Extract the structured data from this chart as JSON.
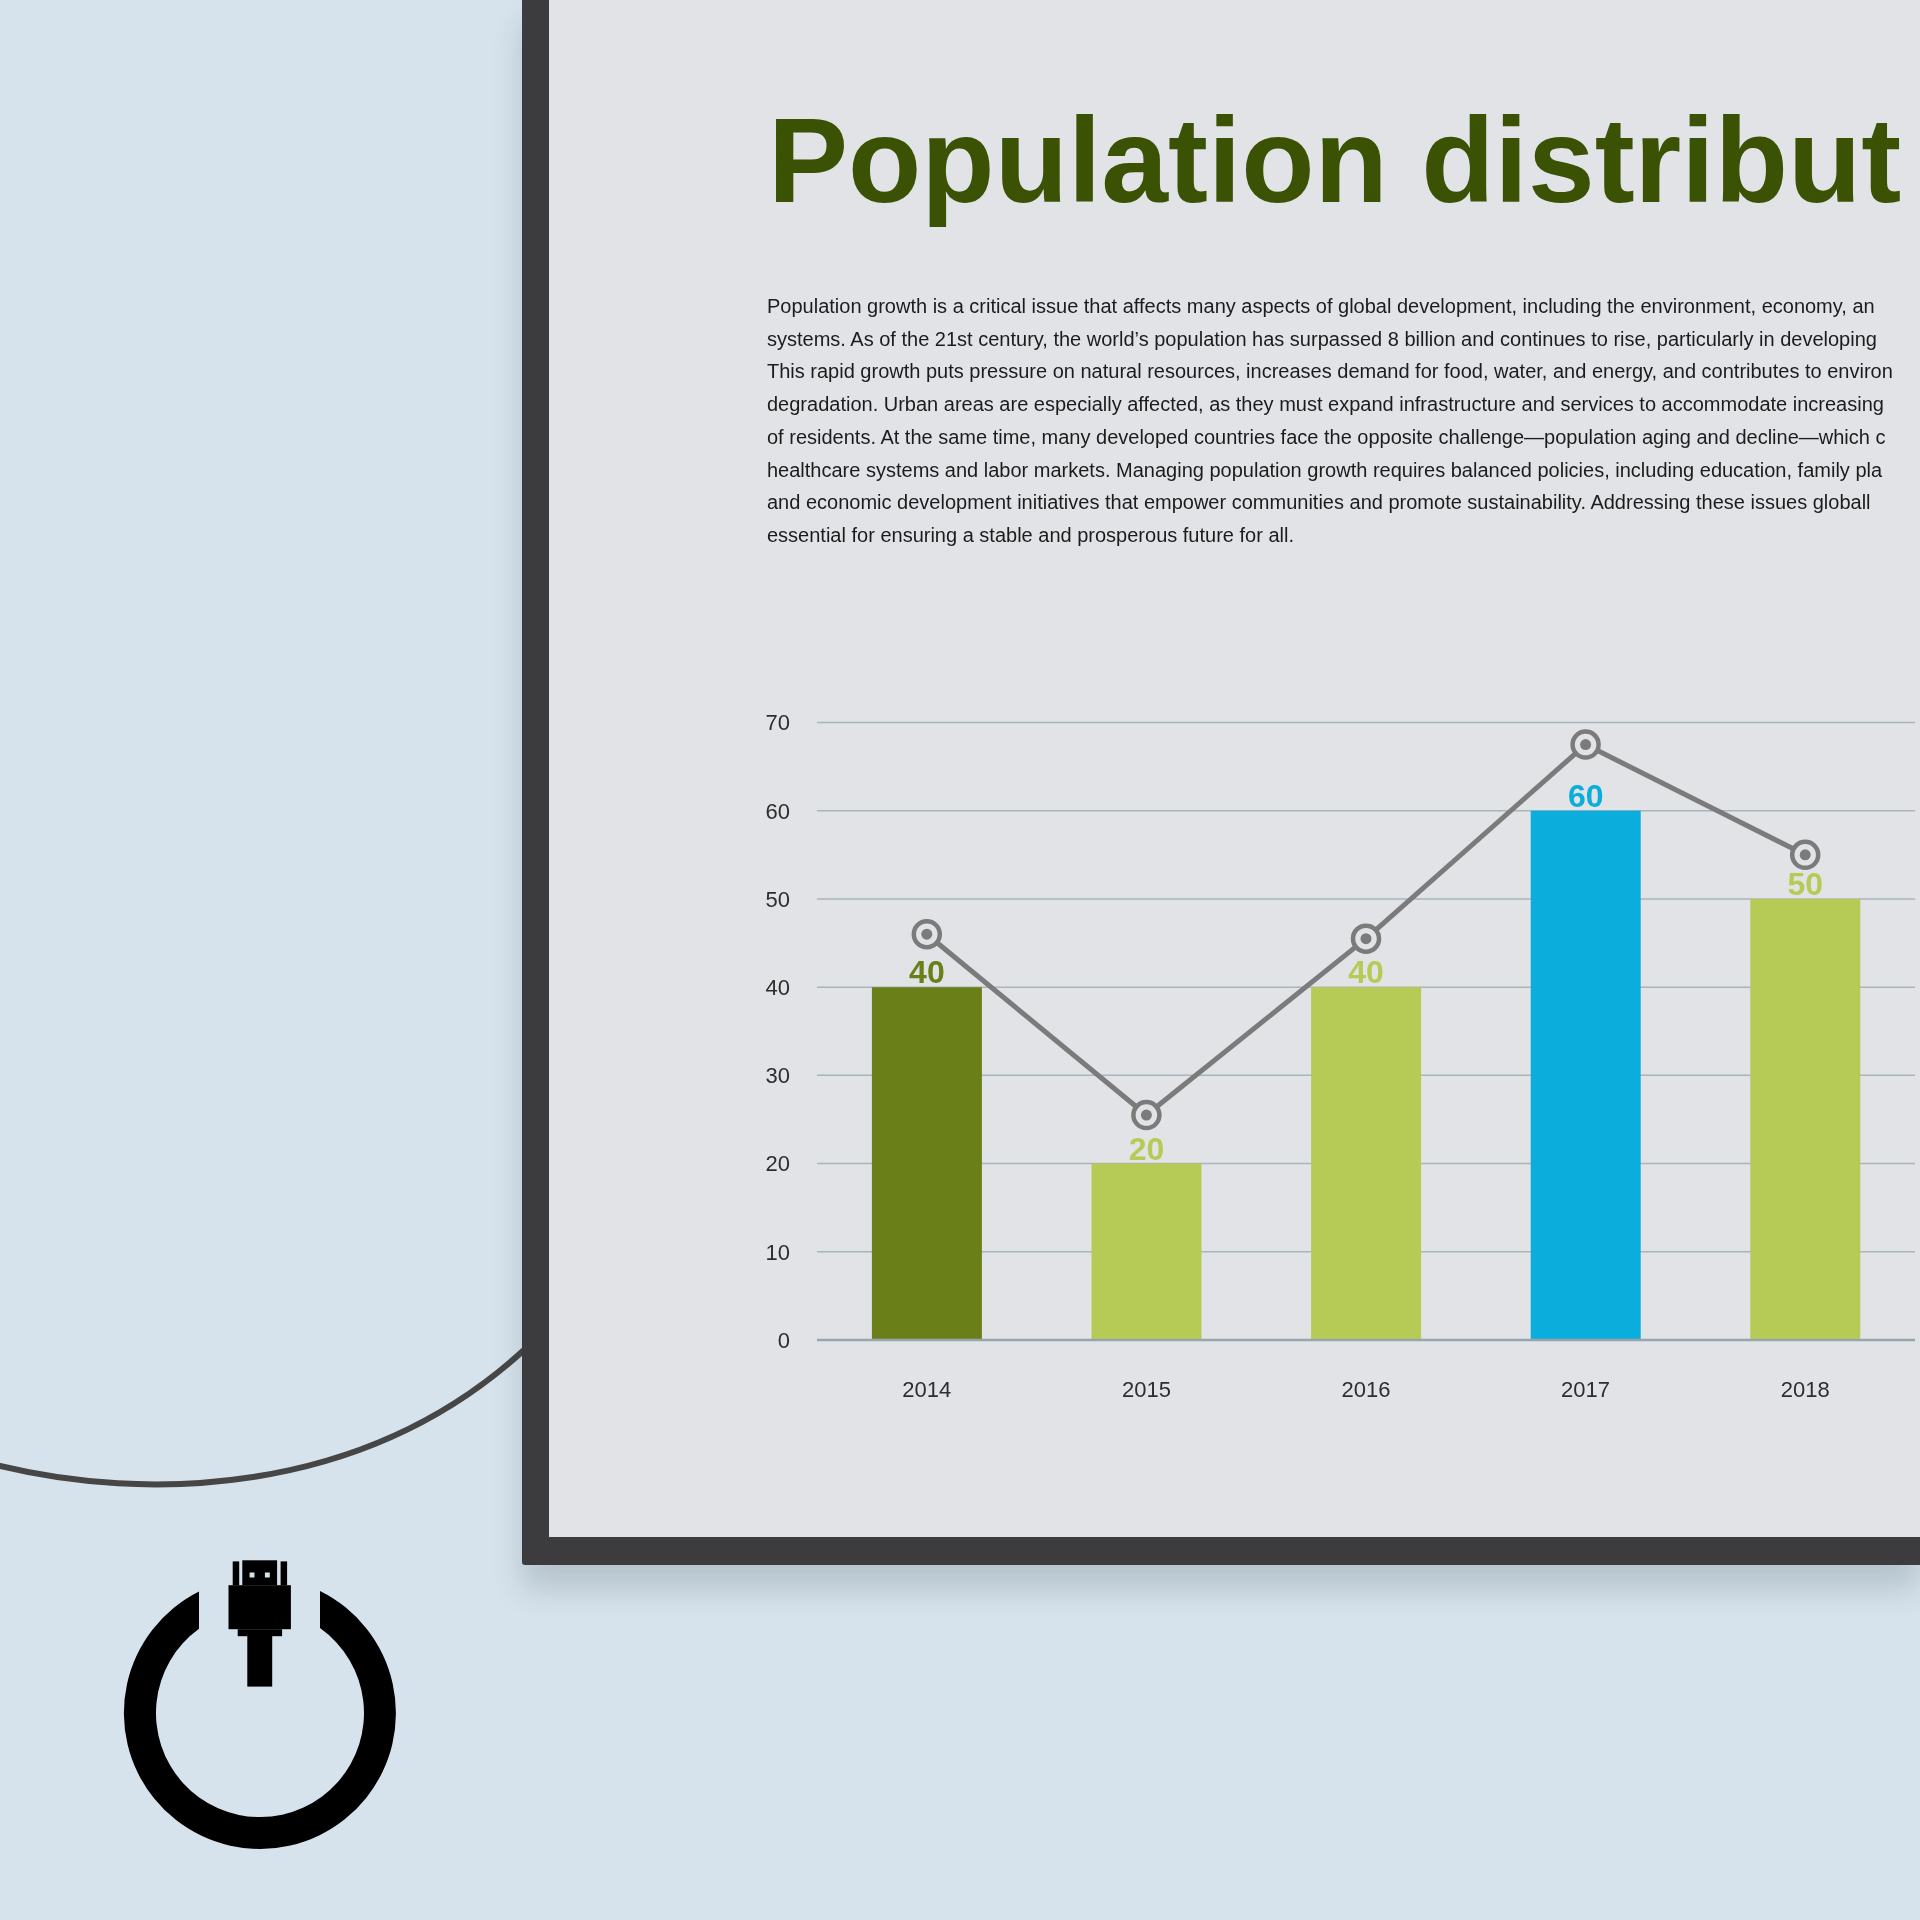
{
  "chart_data": {
    "type": "bar",
    "title": "Population distribut",
    "subtitle": "Population growth is a critical issue that affects many aspects of global development, including the environment, economy, an\nsystems. As of the 21st century, the world’s population has surpassed 8 billion and continues to rise, particularly in developing\nThis rapid growth puts pressure on natural resources, increases demand for food, water, and energy, and contributes to environ\ndegradation. Urban areas are especially affected, as they must expand infrastructure and services to accommodate increasing\nof residents. At the same time, many developed countries face the opposite challenge—population aging and decline—which c\nhealthcare systems and labor markets. Managing population growth requires balanced policies, including education, family pla\nand economic development initiatives that empower communities and promote sustainability. Addressing these issues globall\nessential for ensuring a stable and prosperous future for all.",
    "categories": [
      "2014",
      "2015",
      "2016",
      "2017",
      "2018"
    ],
    "series": [
      {
        "colors": [
          "#6a7f18",
          "#b6cb55",
          "#b6cb55",
          "#0aaddc",
          "#b6cb55"
        ],
        "values": [
          40,
          20,
          40,
          60,
          50
        ],
        "value_labels": [
          "40",
          "20",
          "40",
          "60",
          "50"
        ]
      },
      {
        "type": "line",
        "color": "#7b7b7b",
        "values": [
          46,
          25.5,
          45.5,
          67.5,
          55
        ]
      }
    ],
    "ylim": [
      0,
      70
    ],
    "yticks": [
      0,
      10,
      20,
      30,
      40,
      50,
      60,
      70
    ],
    "grid": "y",
    "marker": "circle",
    "line_style": "solid"
  }
}
